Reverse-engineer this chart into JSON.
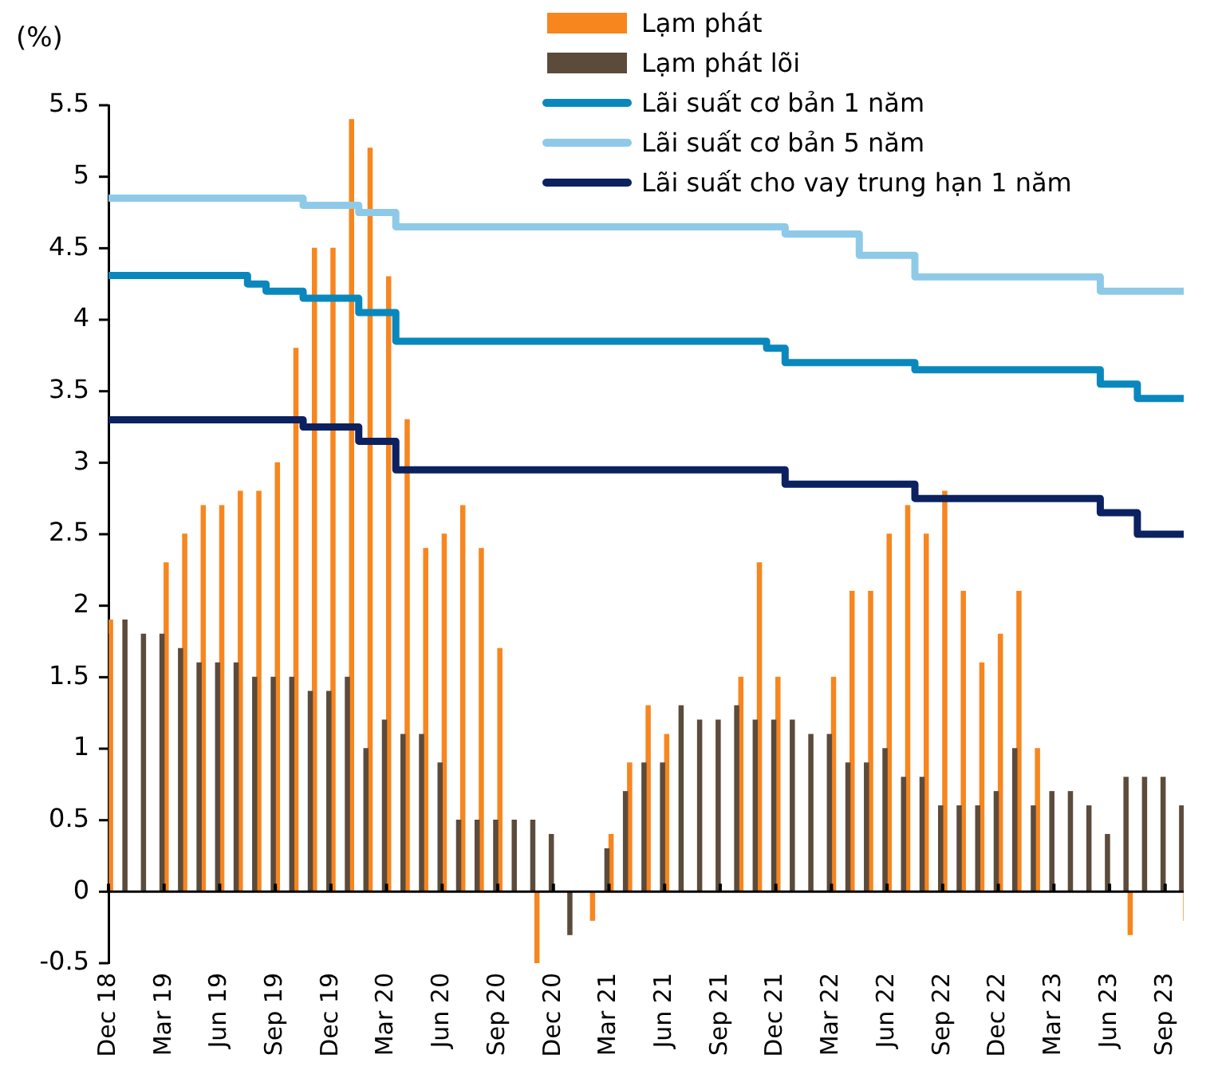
{
  "chart_data": {
    "type": "bar",
    "ylabel": "(%)",
    "categories": [
      "Dec 18",
      null,
      null,
      "Mar 19",
      null,
      null,
      "Jun 19",
      null,
      null,
      "Sep 19",
      null,
      null,
      "Dec 19",
      null,
      null,
      "Mar 20",
      null,
      null,
      "Jun 20",
      null,
      null,
      "Sep 20",
      null,
      null,
      "Dec 20",
      null,
      null,
      "Mar 21",
      null,
      null,
      "Jun 21",
      null,
      null,
      "Sep 21",
      null,
      null,
      "Dec 21",
      null,
      null,
      "Mar 22",
      null,
      null,
      "Jun 22",
      null,
      null,
      "Sep 22",
      null,
      null,
      "Dec 22",
      null,
      null,
      "Mar 23",
      null,
      null,
      "Jun 23",
      null,
      null,
      "Sep 23",
      null
    ],
    "series": [
      {
        "name": "Lạm phát",
        "color": "#f7861f",
        "values": [
          1.9,
          null,
          null,
          2.3,
          2.5,
          2.7,
          2.7,
          2.8,
          2.8,
          3.0,
          3.8,
          4.5,
          4.5,
          5.4,
          5.2,
          4.3,
          3.3,
          2.4,
          2.5,
          2.7,
          2.4,
          1.7,
          null,
          -0.5,
          null,
          null,
          -0.2,
          0.4,
          0.9,
          1.3,
          1.1,
          null,
          null,
          null,
          1.5,
          2.3,
          1.5,
          null,
          null,
          1.5,
          2.1,
          2.1,
          2.5,
          2.7,
          2.5,
          2.8,
          2.1,
          1.6,
          1.8,
          2.1,
          1.0,
          null,
          null,
          null,
          null,
          -0.3,
          null,
          null,
          -0.2
        ]
      },
      {
        "name": "Lạm phát lõi",
        "color": "#5c4b3b",
        "values": [
          1.8,
          1.9,
          1.8,
          1.8,
          1.7,
          1.6,
          1.6,
          1.6,
          1.5,
          1.5,
          1.5,
          1.4,
          1.4,
          1.5,
          1.0,
          1.2,
          1.1,
          1.1,
          0.9,
          0.5,
          0.5,
          0.5,
          0.5,
          0.5,
          0.4,
          -0.3,
          0.0,
          0.3,
          0.7,
          0.9,
          0.9,
          1.3,
          1.2,
          1.2,
          1.3,
          1.2,
          1.2,
          1.2,
          1.1,
          1.1,
          0.9,
          0.9,
          1.0,
          0.8,
          0.8,
          0.6,
          0.6,
          0.6,
          0.7,
          1.0,
          0.6,
          0.7,
          0.7,
          0.6,
          0.4,
          0.8,
          0.8,
          0.8,
          0.6
        ]
      },
      {
        "name": "Lãi suất cơ bản 1 năm",
        "type": "step",
        "color": "#0a88bd",
        "values": [
          4.31,
          4.31,
          4.31,
          4.31,
          4.31,
          4.31,
          4.31,
          4.31,
          4.25,
          4.2,
          4.2,
          4.15,
          4.15,
          4.15,
          4.05,
          4.05,
          3.85,
          3.85,
          3.85,
          3.85,
          3.85,
          3.85,
          3.85,
          3.85,
          3.85,
          3.85,
          3.85,
          3.85,
          3.85,
          3.85,
          3.85,
          3.85,
          3.85,
          3.85,
          3.85,
          3.85,
          3.8,
          3.7,
          3.7,
          3.7,
          3.7,
          3.7,
          3.7,
          3.7,
          3.65,
          3.65,
          3.65,
          3.65,
          3.65,
          3.65,
          3.65,
          3.65,
          3.65,
          3.65,
          3.55,
          3.55,
          3.45,
          3.45,
          3.45
        ]
      },
      {
        "name": "Lãi suất cơ bản 5 năm",
        "type": "step",
        "color": "#8ecae8",
        "values": [
          4.85,
          4.85,
          4.85,
          4.85,
          4.85,
          4.85,
          4.85,
          4.85,
          4.85,
          4.85,
          4.85,
          4.8,
          4.8,
          4.8,
          4.75,
          4.75,
          4.65,
          4.65,
          4.65,
          4.65,
          4.65,
          4.65,
          4.65,
          4.65,
          4.65,
          4.65,
          4.65,
          4.65,
          4.65,
          4.65,
          4.65,
          4.65,
          4.65,
          4.65,
          4.65,
          4.65,
          4.65,
          4.6,
          4.6,
          4.6,
          4.6,
          4.45,
          4.45,
          4.45,
          4.3,
          4.3,
          4.3,
          4.3,
          4.3,
          4.3,
          4.3,
          4.3,
          4.3,
          4.3,
          4.2,
          4.2,
          4.2,
          4.2,
          4.2
        ]
      },
      {
        "name": "Lãi suất cho vay trung hạn 1 năm",
        "type": "step",
        "color": "#0b2160",
        "values": [
          3.3,
          3.3,
          3.3,
          3.3,
          3.3,
          3.3,
          3.3,
          3.3,
          3.3,
          3.3,
          3.3,
          3.25,
          3.25,
          3.25,
          3.15,
          3.15,
          2.95,
          2.95,
          2.95,
          2.95,
          2.95,
          2.95,
          2.95,
          2.95,
          2.95,
          2.95,
          2.95,
          2.95,
          2.95,
          2.95,
          2.95,
          2.95,
          2.95,
          2.95,
          2.95,
          2.95,
          2.95,
          2.85,
          2.85,
          2.85,
          2.85,
          2.85,
          2.85,
          2.85,
          2.75,
          2.75,
          2.75,
          2.75,
          2.75,
          2.75,
          2.75,
          2.75,
          2.75,
          2.75,
          2.65,
          2.65,
          2.5,
          2.5,
          2.5
        ]
      }
    ],
    "ylim": [
      -0.5,
      5.5
    ],
    "yticks": [
      -0.5,
      0,
      0.5,
      1,
      1.5,
      2,
      2.5,
      3,
      3.5,
      4,
      4.5,
      5,
      5.5
    ],
    "ref_lines": [
      {
        "axis": "y",
        "value": 0,
        "color": "#000000"
      }
    ],
    "grid": false,
    "legend": "top"
  }
}
